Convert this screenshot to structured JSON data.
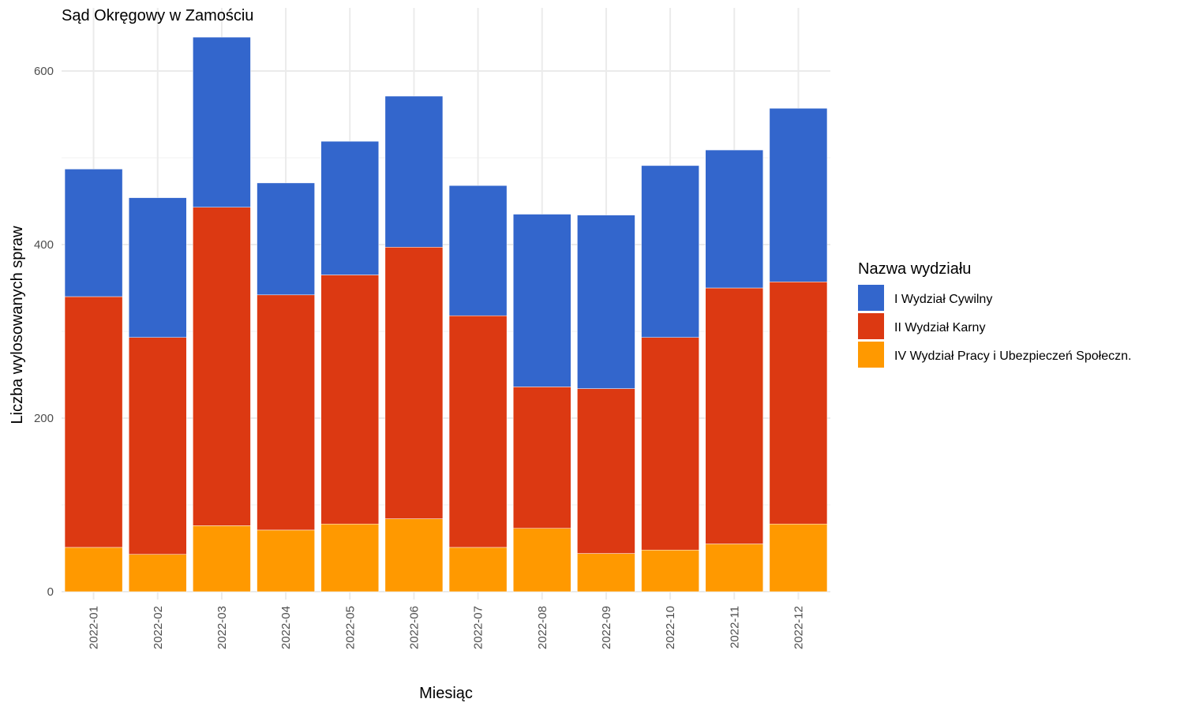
{
  "chart_data": {
    "type": "bar",
    "stacked": true,
    "title": "Sąd Okręgowy w Zamościu",
    "xlabel": "Miesiąc",
    "ylabel": "Liczba wylosowanych spraw",
    "ylim": [
      0,
      650
    ],
    "yticks": [
      0,
      200,
      400,
      600
    ],
    "grid": true,
    "legend_title": "Nazwa wydziału",
    "legend_position": "right",
    "categories": [
      "2022-01",
      "2022-02",
      "2022-03",
      "2022-04",
      "2022-05",
      "2022-06",
      "2022-07",
      "2022-08",
      "2022-09",
      "2022-10",
      "2022-11",
      "2022-12"
    ],
    "series": [
      {
        "name": "IV Wydział Pracy i Ubezpieczeń Społeczn.",
        "color": "#FF9900",
        "values": [
          51,
          43,
          76,
          71,
          78,
          84,
          51,
          73,
          44,
          48,
          55,
          78
        ]
      },
      {
        "name": "II Wydział Karny",
        "color": "#DC3912",
        "values": [
          289,
          250,
          367,
          271,
          287,
          313,
          267,
          163,
          190,
          245,
          295,
          279
        ]
      },
      {
        "name": "I Wydział Cywilny",
        "color": "#3366CC",
        "values": [
          147,
          161,
          196,
          129,
          154,
          174,
          150,
          199,
          200,
          198,
          159,
          200
        ]
      }
    ],
    "legend_order": [
      "I Wydział Cywilny",
      "II Wydział Karny",
      "IV Wydział Pracy i Ubezpieczeń Społeczn."
    ]
  }
}
